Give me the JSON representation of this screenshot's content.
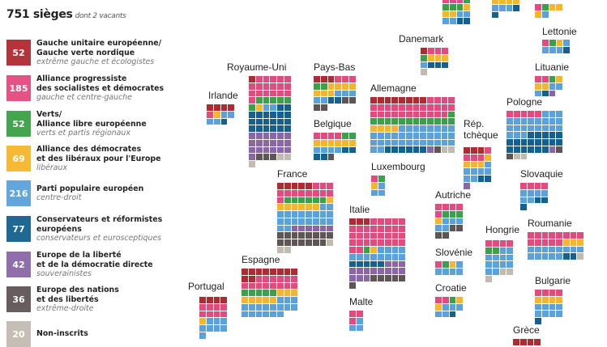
{
  "header": {
    "title": "751 sièges",
    "subtitle": "dont 2 vacants"
  },
  "parties": [
    {
      "code": "G",
      "seats": "52",
      "name": "Gauche unitaire européenne/\nGauche verte nordique",
      "desc": "extrême gauche et écologistes",
      "color": "#b02a31"
    },
    {
      "code": "S",
      "seats": "185",
      "name": "Alliance progressiste\ndes socialistes et démocrates",
      "desc": "gauche et centre-gauche",
      "color": "#e34a7e"
    },
    {
      "code": "V",
      "seats": "52",
      "name": "Verts/\nAlliance libre européenne",
      "desc": "verts et partis régionaux",
      "color": "#3aa148"
    },
    {
      "code": "L",
      "seats": "69",
      "name": "Alliance des démocrates\net des libéraux pour l'Europe",
      "desc": "libéraux",
      "color": "#f6b62b"
    },
    {
      "code": "P",
      "seats": "216",
      "name": "Parti populaire européen",
      "desc": "centre-droit",
      "color": "#5ba2dd"
    },
    {
      "code": "C",
      "seats": "77",
      "name": "Conservateurs et réformistes\neuropéens",
      "desc": "conservateurs et eurosceptiques",
      "color": "#14608e"
    },
    {
      "code": "E",
      "seats": "42",
      "name": "Europe de la liberté\net de la démocratie directe",
      "desc": "souverainistes",
      "color": "#8b66a7"
    },
    {
      "code": "N",
      "seats": "36",
      "name": "Europe des nations\net des libertés",
      "desc": "extrême-droite",
      "color": "#5f5557"
    },
    {
      "code": "NI",
      "seats": "20",
      "name": "Non-inscrits",
      "desc": "",
      "color": "#c2bbb0"
    }
  ],
  "countries": [
    {
      "name": "Irlande",
      "seats": [
        [
          "G",
          4
        ],
        [
          "S",
          1
        ],
        [
          "L",
          1
        ],
        [
          "P",
          4
        ],
        [
          "C",
          1
        ]
      ]
    },
    {
      "name": "Royaume-Uni",
      "seats": [
        [
          "G",
          1
        ],
        [
          "S",
          18
        ],
        [
          "V",
          6
        ],
        [
          "L",
          1
        ],
        [
          "P",
          2
        ],
        [
          "C",
          20
        ],
        [
          "E",
          19
        ],
        [
          "N",
          3
        ],
        [
          "NI",
          3
        ]
      ]
    },
    {
      "name": "Pays-Bas",
      "seats": [
        [
          "G",
          3
        ],
        [
          "S",
          3
        ],
        [
          "V",
          2
        ],
        [
          "L",
          7
        ],
        [
          "P",
          5
        ],
        [
          "C",
          2
        ],
        [
          "N",
          4
        ]
      ]
    },
    {
      "name": "Belgique",
      "seats": [
        [
          "S",
          4
        ],
        [
          "V",
          2
        ],
        [
          "L",
          6
        ],
        [
          "P",
          4
        ],
        [
          "C",
          4
        ],
        [
          "N",
          1
        ]
      ]
    },
    {
      "name": "Danemark",
      "seats": [
        [
          "G",
          1
        ],
        [
          "S",
          3
        ],
        [
          "V",
          1
        ],
        [
          "L",
          3
        ],
        [
          "P",
          1
        ],
        [
          "C",
          3
        ],
        [
          "NI",
          1
        ]
      ]
    },
    {
      "name": "Allemagne",
      "seats": [
        [
          "G",
          8
        ],
        [
          "S",
          27
        ],
        [
          "V",
          13
        ],
        [
          "L",
          4
        ],
        [
          "P",
          34
        ],
        [
          "C",
          6
        ],
        [
          "E",
          1
        ],
        [
          "N",
          1
        ],
        [
          "NI",
          2
        ]
      ]
    },
    {
      "name": "Lettonie",
      "seats": [
        [
          "S",
          1
        ],
        [
          "V",
          1
        ],
        [
          "L",
          1
        ],
        [
          "P",
          4
        ],
        [
          "C",
          1
        ]
      ]
    },
    {
      "name": "Lituanie",
      "seats": [
        [
          "S",
          2
        ],
        [
          "V",
          1
        ],
        [
          "L",
          3
        ],
        [
          "P",
          3
        ],
        [
          "C",
          1
        ],
        [
          "E",
          1
        ]
      ]
    },
    {
      "name": "Pologne",
      "seats": [
        [
          "S",
          5
        ],
        [
          "P",
          22
        ],
        [
          "C",
          19
        ],
        [
          "E",
          1
        ],
        [
          "N",
          2
        ],
        [
          "NI",
          2
        ]
      ]
    },
    {
      "name": "Rép.\ntchèque",
      "seats": [
        [
          "G",
          3
        ],
        [
          "S",
          4
        ],
        [
          "L",
          4
        ],
        [
          "P",
          7
        ],
        [
          "C",
          2
        ],
        [
          "E",
          1
        ]
      ]
    },
    {
      "name": "Luxembourg",
      "seats": [
        [
          "S",
          1
        ],
        [
          "V",
          1
        ],
        [
          "L",
          1
        ],
        [
          "P",
          3
        ]
      ]
    },
    {
      "name": "France",
      "seats": [
        [
          "G",
          5
        ],
        [
          "S",
          12
        ],
        [
          "V",
          6
        ],
        [
          "L",
          7
        ],
        [
          "P",
          20
        ],
        [
          "E",
          6
        ],
        [
          "N",
          15
        ],
        [
          "NI",
          3
        ]
      ]
    },
    {
      "name": "Italie",
      "seats": [
        [
          "G",
          3
        ],
        [
          "S",
          31
        ],
        [
          "V",
          1
        ],
        [
          "L",
          1
        ],
        [
          "P",
          12
        ],
        [
          "C",
          5
        ],
        [
          "E",
          14
        ],
        [
          "N",
          6
        ]
      ]
    },
    {
      "name": "Slovaquie",
      "seats": [
        [
          "S",
          4
        ],
        [
          "P",
          6
        ],
        [
          "C",
          3
        ]
      ]
    },
    {
      "name": "Autriche",
      "seats": [
        [
          "S",
          5
        ],
        [
          "V",
          3
        ],
        [
          "L",
          1
        ],
        [
          "P",
          5
        ],
        [
          "N",
          4
        ]
      ]
    },
    {
      "name": "Hongrie",
      "seats": [
        [
          "S",
          4
        ],
        [
          "V",
          2
        ],
        [
          "P",
          12
        ],
        [
          "NI",
          3
        ]
      ]
    },
    {
      "name": "Roumanie",
      "seats": [
        [
          "S",
          13
        ],
        [
          "L",
          3
        ],
        [
          "P",
          13
        ],
        [
          "C",
          2
        ],
        [
          "NI",
          1
        ]
      ]
    },
    {
      "name": "Slovénie",
      "seats": [
        [
          "S",
          1
        ],
        [
          "V",
          1
        ],
        [
          "L",
          1
        ],
        [
          "P",
          5
        ]
      ]
    },
    {
      "name": "Croatie",
      "seats": [
        [
          "S",
          2
        ],
        [
          "V",
          1
        ],
        [
          "L",
          2
        ],
        [
          "P",
          5
        ],
        [
          "C",
          1
        ]
      ]
    },
    {
      "name": "Bulgarie",
      "seats": [
        [
          "S",
          4
        ],
        [
          "L",
          4
        ],
        [
          "P",
          8
        ],
        [
          "C",
          1
        ]
      ]
    },
    {
      "name": "Espagne",
      "seats": [
        [
          "G",
          10
        ],
        [
          "S",
          14
        ],
        [
          "V",
          5
        ],
        [
          "L",
          8
        ],
        [
          "P",
          17
        ]
      ]
    },
    {
      "name": "Portugal",
      "seats": [
        [
          "G",
          4
        ],
        [
          "S",
          8
        ],
        [
          "L",
          1
        ],
        [
          "P",
          8
        ]
      ]
    },
    {
      "name": "Malte",
      "seats": [
        [
          "S",
          3
        ],
        [
          "P",
          3
        ]
      ]
    },
    {
      "name": "Grèce",
      "seats": [
        [
          "G",
          4
        ]
      ]
    },
    {
      "seats": [
        [
          "S",
          3
        ],
        [
          "V",
          4
        ],
        [
          "L",
          3
        ],
        [
          "P",
          4
        ],
        [
          "C",
          2
        ]
      ]
    },
    {
      "seats": [
        [
          "L",
          4
        ],
        [
          "P",
          3
        ],
        [
          "C",
          2
        ]
      ]
    },
    {
      "seats": [
        [
          "S",
          1
        ],
        [
          "V",
          1
        ],
        [
          "L",
          3
        ],
        [
          "P",
          1
        ]
      ]
    }
  ]
}
